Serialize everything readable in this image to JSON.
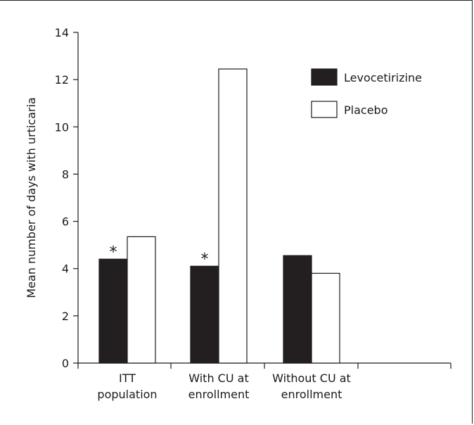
{
  "chart_data": {
    "type": "bar",
    "title": "",
    "xlabel": "",
    "ylabel": "Mean number of days with urticaria",
    "ylim": [
      0,
      14
    ],
    "yticks": [
      0,
      2,
      4,
      6,
      8,
      10,
      12,
      14
    ],
    "categories": [
      [
        "ITT",
        "population"
      ],
      [
        "With CU at",
        "enrollment"
      ],
      [
        "Without CU at",
        "enrollment"
      ]
    ],
    "series": [
      {
        "name": "Levocetirizine",
        "color": "#231f20",
        "values": [
          4.4,
          4.1,
          4.55
        ]
      },
      {
        "name": "Placebo",
        "color": "#ffffff",
        "values": [
          5.35,
          12.45,
          3.8
        ]
      }
    ],
    "significance": [
      {
        "category_index": 0,
        "series_index": 0,
        "label": "*"
      },
      {
        "category_index": 1,
        "series_index": 0,
        "label": "*"
      }
    ],
    "legend": {
      "position": "top-right"
    },
    "grid": false
  }
}
